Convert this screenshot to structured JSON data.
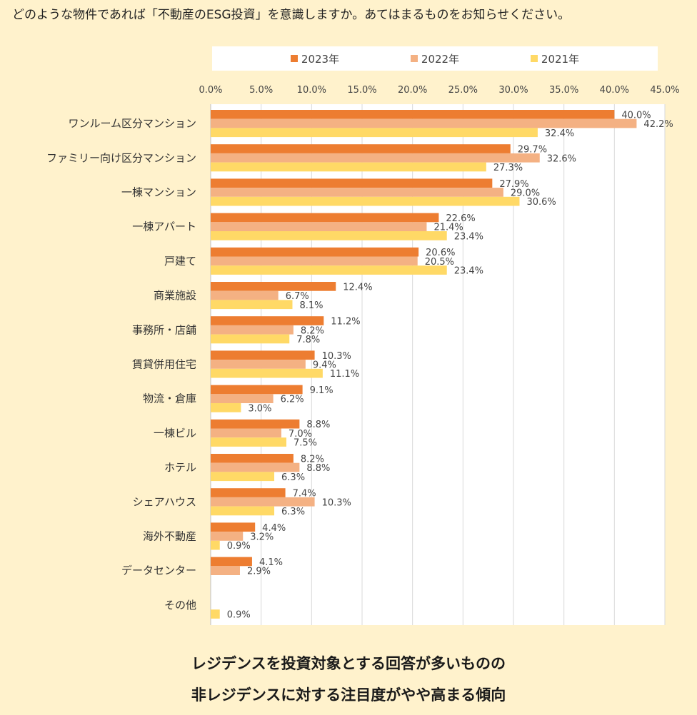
{
  "question": "どのような物件であれば「不動産のESG投資」を意識しますか。あてはまるものをお知らせください。",
  "caption": {
    "line1": "レジデンスを投資対象とする回答が多いものの",
    "line2": "非レジデンスに対する注目度がやや高まる傾向"
  },
  "chart_data": {
    "type": "bar",
    "orientation": "horizontal",
    "title": "どのような物件であれば「不動産のESG投資」を意識しますか。あてはまるものをお知らせください。",
    "xlabel": "",
    "ylabel": "",
    "xlim": [
      0,
      45
    ],
    "x_ticks": [
      "0.0%",
      "5.0%",
      "10.0%",
      "15.0%",
      "20.0%",
      "25.0%",
      "30.0%",
      "35.0%",
      "40.0%",
      "45.0%"
    ],
    "grid": true,
    "legend_position": "top",
    "categories": [
      "ワンルーム区分マンション",
      "ファミリー向け区分マンション",
      "一棟マンション",
      "一棟アパート",
      "戸建て",
      "商業施設",
      "事務所・店舗",
      "賃貸併用住宅",
      "物流・倉庫",
      "一棟ビル",
      "ホテル",
      "シェアハウス",
      "海外不動産",
      "データセンター",
      "その他"
    ],
    "series": [
      {
        "name": "2023年",
        "color": "#ED7D31",
        "values": [
          40.0,
          29.7,
          27.9,
          22.6,
          20.6,
          12.4,
          11.2,
          10.3,
          9.1,
          8.8,
          8.2,
          7.4,
          4.4,
          4.1,
          null
        ]
      },
      {
        "name": "2022年",
        "color": "#F4B183",
        "values": [
          42.2,
          32.6,
          29.0,
          21.4,
          20.5,
          6.7,
          8.2,
          9.4,
          6.2,
          7.0,
          8.8,
          10.3,
          3.2,
          2.9,
          null
        ]
      },
      {
        "name": "2021年",
        "color": "#FFD966",
        "values": [
          32.4,
          27.3,
          30.6,
          23.4,
          23.4,
          8.1,
          7.8,
          11.1,
          3.0,
          7.5,
          6.3,
          6.3,
          0.9,
          null,
          0.9
        ]
      }
    ]
  }
}
